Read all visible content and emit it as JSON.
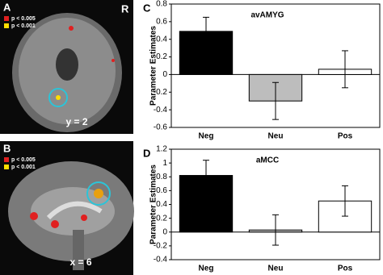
{
  "images": [
    {
      "letter": "A",
      "legend": [
        "p < 0.005",
        "p < 0.001"
      ],
      "orientation": "R",
      "coord": "y = 2"
    },
    {
      "letter": "B",
      "legend": [
        "p < 0.005",
        "p < 0.001"
      ],
      "coord": "x = 6"
    }
  ],
  "chart_data": [
    {
      "type": "bar",
      "panel": "C",
      "title": "avAMYG",
      "ylabel": "Parameter Estimates",
      "categories": [
        "Neg",
        "Neu",
        "Pos"
      ],
      "values": [
        0.49,
        -0.3,
        0.06
      ],
      "errors": [
        0.16,
        0.21,
        0.21
      ],
      "colors": [
        "#000000",
        "#bdbdbd",
        "#ffffff"
      ],
      "ylim": [
        -0.6,
        0.8
      ],
      "yticks": [
        -0.6,
        -0.4,
        -0.2,
        0,
        0.2,
        0.4,
        0.6,
        0.8
      ]
    },
    {
      "type": "bar",
      "panel": "D",
      "title": "aMCC",
      "ylabel": "Parameter Estimates",
      "categories": [
        "Neg",
        "Neu",
        "Pos"
      ],
      "values": [
        0.82,
        0.03,
        0.45
      ],
      "errors": [
        0.22,
        0.22,
        0.22
      ],
      "colors": [
        "#000000",
        "#bdbdbd",
        "#ffffff"
      ],
      "ylim": [
        -0.4,
        1.2
      ],
      "yticks": [
        -0.4,
        -0.2,
        0,
        0.2,
        0.4,
        0.6,
        0.8,
        1,
        1.2
      ]
    }
  ]
}
